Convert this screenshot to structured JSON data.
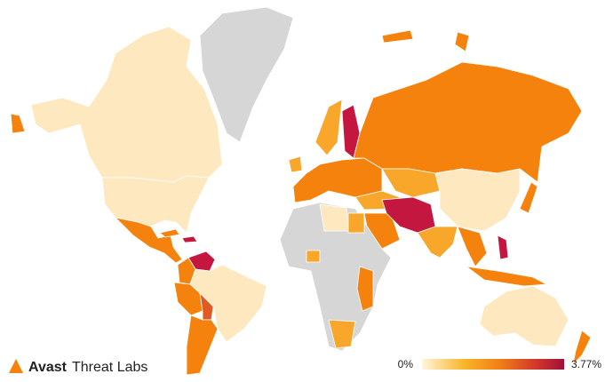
{
  "brand": {
    "name": "Avast",
    "product": "Threat Labs"
  },
  "legend": {
    "ticks": [
      {
        "value": 0,
        "label": "0%"
      },
      {
        "value": 3.77,
        "label": "3.77%"
      }
    ]
  }
}
